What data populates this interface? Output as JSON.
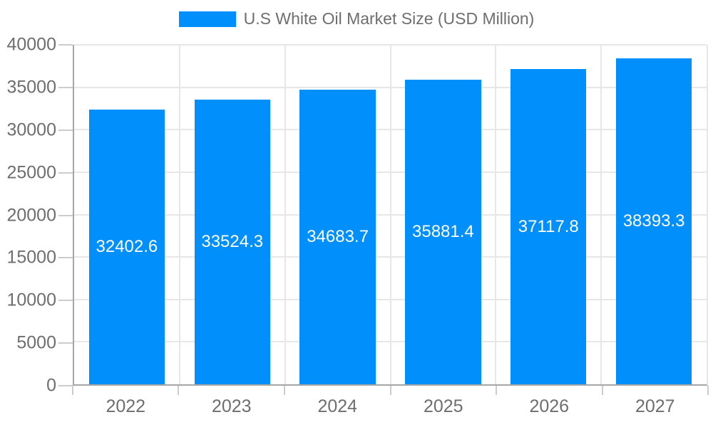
{
  "chart_data": {
    "type": "bar",
    "legend": {
      "label": "U.S White Oil Market Size (USD Million)",
      "position": "top"
    },
    "categories": [
      "2022",
      "2023",
      "2024",
      "2025",
      "2026",
      "2027"
    ],
    "series": [
      {
        "name": "U.S White Oil Market Size (USD Million)",
        "values": [
          32402.6,
          33524.3,
          34683.7,
          35881.4,
          37117.8,
          38393.3
        ]
      }
    ],
    "value_labels": [
      "32402.6",
      "33524.3",
      "34683.7",
      "35881.4",
      "37117.8",
      "38393.3"
    ],
    "xlabel": "",
    "ylabel": "",
    "ylim": [
      0,
      40000
    ],
    "ytick_step": 5000,
    "ytick_labels": [
      "0",
      "5000",
      "10000",
      "15000",
      "20000",
      "25000",
      "30000",
      "35000",
      "40000"
    ],
    "grid": true,
    "colors": {
      "bar": "#008FFB",
      "value_label_text": "#ffffff",
      "axis_text": "#6e6e6e",
      "legend_text": "#6e6e6e",
      "gridline": "#e7e7e7",
      "axis_line": "#a6a6a6",
      "tick": "#cccccc",
      "background": "#ffffff"
    }
  }
}
